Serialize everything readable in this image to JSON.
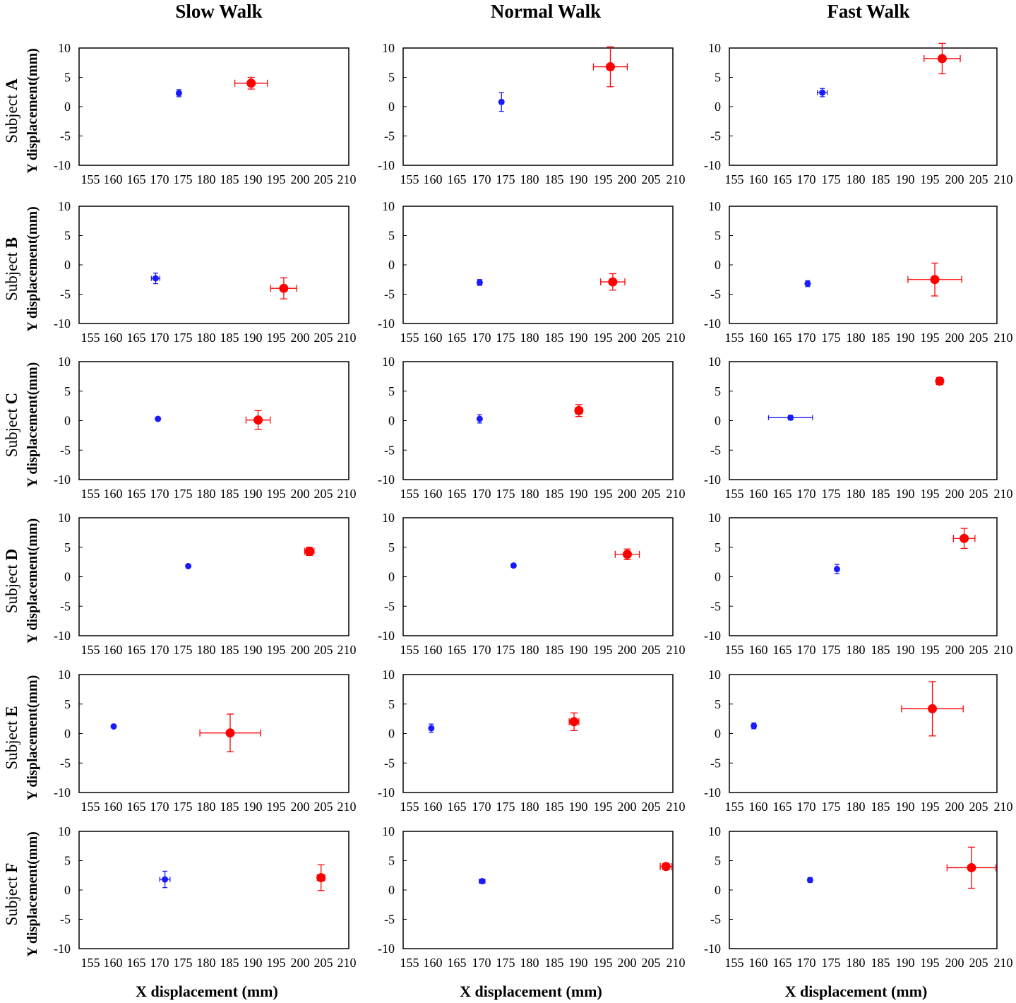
{
  "figure": {
    "column_titles": [
      "Slow Walk",
      "Normal Walk",
      "Fast Walk"
    ],
    "row_prefix": "Subject",
    "row_letters": [
      "A",
      "B",
      "C",
      "D",
      "E",
      "F"
    ],
    "y_axis_label": "Y displacement(mm)",
    "x_axis_label": "X displacement (mm)"
  },
  "colors": {
    "blue": "#1a1aff",
    "red": "#ff0000"
  },
  "chart_data": {
    "type": "scatter",
    "xlim": [
      155,
      210
    ],
    "ylim": [
      -10,
      10
    ],
    "x_ticks": [
      "155",
      "160",
      "165",
      "170",
      "175",
      "180",
      "185",
      "190",
      "195",
      "200",
      "205",
      "210"
    ],
    "y_ticks": [
      "10",
      "5",
      "0",
      "-5",
      "-10"
    ],
    "panels": [
      {
        "row": "A",
        "column": "Slow Walk",
        "blue": {
          "x": 174,
          "y": 2.3,
          "xerr": 0.4,
          "yerr": 0.6
        },
        "red": {
          "x": 189.5,
          "y": 4.0,
          "xerr": 3.5,
          "yerr": 1.0
        }
      },
      {
        "row": "A",
        "column": "Normal Walk",
        "blue": {
          "x": 174,
          "y": 0.8,
          "xerr": 0.4,
          "yerr": 1.6
        },
        "red": {
          "x": 196.5,
          "y": 6.8,
          "xerr": 3.5,
          "yerr": 3.4
        }
      },
      {
        "row": "A",
        "column": "Fast Walk",
        "blue": {
          "x": 173,
          "y": 2.4,
          "xerr": 1.0,
          "yerr": 0.7
        },
        "red": {
          "x": 197.5,
          "y": 8.2,
          "xerr": 3.7,
          "yerr": 2.6
        }
      },
      {
        "row": "B",
        "column": "Slow Walk",
        "blue": {
          "x": 169,
          "y": -2.3,
          "xerr": 0.9,
          "yerr": 0.9
        },
        "red": {
          "x": 196.5,
          "y": -4.0,
          "xerr": 2.8,
          "yerr": 1.8
        }
      },
      {
        "row": "B",
        "column": "Normal Walk",
        "blue": {
          "x": 169.5,
          "y": -3.0,
          "xerr": 0.4,
          "yerr": 0.5
        },
        "red": {
          "x": 197,
          "y": -2.9,
          "xerr": 2.5,
          "yerr": 1.4
        }
      },
      {
        "row": "B",
        "column": "Fast Walk",
        "blue": {
          "x": 170,
          "y": -3.2,
          "xerr": 0.2,
          "yerr": 0.5
        },
        "red": {
          "x": 196,
          "y": -2.5,
          "xerr": 5.5,
          "yerr": 2.8
        }
      },
      {
        "row": "C",
        "column": "Slow Walk",
        "blue": {
          "x": 169.5,
          "y": 0.3,
          "xerr": 0.2,
          "yerr": 0.3
        },
        "red": {
          "x": 191,
          "y": 0.1,
          "xerr": 2.6,
          "yerr": 1.6
        }
      },
      {
        "row": "C",
        "column": "Normal Walk",
        "blue": {
          "x": 169.5,
          "y": 0.3,
          "xerr": 0.3,
          "yerr": 0.7
        },
        "red": {
          "x": 190,
          "y": 1.7,
          "xerr": 0.7,
          "yerr": 1.0
        }
      },
      {
        "row": "C",
        "column": "Fast Walk",
        "blue": {
          "x": 166.5,
          "y": 0.5,
          "xerr": 4.5,
          "yerr": 0.4
        },
        "red": {
          "x": 197,
          "y": 6.7,
          "xerr": 0.5,
          "yerr": 0.6
        }
      },
      {
        "row": "D",
        "column": "Slow Walk",
        "blue": {
          "x": 176,
          "y": 1.8,
          "xerr": 0.1,
          "yerr": 0.3
        },
        "red": {
          "x": 202,
          "y": 4.3,
          "xerr": 1.0,
          "yerr": 0.7
        }
      },
      {
        "row": "D",
        "column": "Normal Walk",
        "blue": {
          "x": 176.5,
          "y": 1.9,
          "xerr": 0.1,
          "yerr": 0.3
        },
        "red": {
          "x": 200,
          "y": 3.8,
          "xerr": 2.5,
          "yerr": 0.9
        }
      },
      {
        "row": "D",
        "column": "Fast Walk",
        "blue": {
          "x": 176,
          "y": 1.3,
          "xerr": 0.3,
          "yerr": 0.8
        },
        "red": {
          "x": 202,
          "y": 6.5,
          "xerr": 2.2,
          "yerr": 1.7
        }
      },
      {
        "row": "E",
        "column": "Slow Walk",
        "blue": {
          "x": 160,
          "y": 1.2,
          "xerr": 0.1,
          "yerr": 0.2
        },
        "red": {
          "x": 185,
          "y": 0.1,
          "xerr": 6.5,
          "yerr": 3.2
        }
      },
      {
        "row": "E",
        "column": "Normal Walk",
        "blue": {
          "x": 159.5,
          "y": 0.9,
          "xerr": 0.4,
          "yerr": 0.7
        },
        "red": {
          "x": 189,
          "y": 2.0,
          "xerr": 1.0,
          "yerr": 1.5
        }
      },
      {
        "row": "E",
        "column": "Fast Walk",
        "blue": {
          "x": 159,
          "y": 1.3,
          "xerr": 0.2,
          "yerr": 0.5
        },
        "red": {
          "x": 195.5,
          "y": 4.2,
          "xerr": 6.3,
          "yerr": 4.6
        }
      },
      {
        "row": "F",
        "column": "Slow Walk",
        "blue": {
          "x": 171,
          "y": 1.8,
          "xerr": 1.1,
          "yerr": 1.4
        },
        "red": {
          "x": 204.5,
          "y": 2.1,
          "xerr": 0.8,
          "yerr": 2.2
        }
      },
      {
        "row": "F",
        "column": "Normal Walk",
        "blue": {
          "x": 170,
          "y": 1.5,
          "xerr": 0.6,
          "yerr": 0.3
        },
        "red": {
          "x": 208,
          "y": 4.0,
          "xerr": 1.2,
          "yerr": 0.5
        }
      },
      {
        "row": "F",
        "column": "Fast Walk",
        "blue": {
          "x": 170.5,
          "y": 1.7,
          "xerr": 0.3,
          "yerr": 0.4
        },
        "red": {
          "x": 203.5,
          "y": 3.8,
          "xerr": 5.0,
          "yerr": 3.5
        }
      }
    ]
  }
}
